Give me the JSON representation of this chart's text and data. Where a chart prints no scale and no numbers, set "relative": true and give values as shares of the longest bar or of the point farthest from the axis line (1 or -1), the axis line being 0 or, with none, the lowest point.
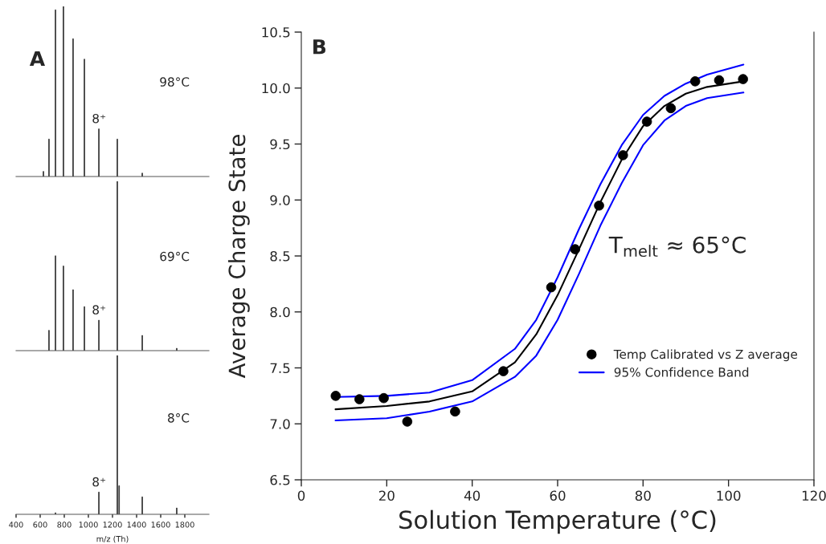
{
  "chart_data": [
    {
      "type": "bar",
      "title": "A",
      "relative": true,
      "color": "#333333",
      "xlim": [
        400,
        2000
      ],
      "tick_labels": false,
      "annotations": [
        "98°C",
        "8⁺"
      ],
      "x": [
        627,
        673,
        727,
        793,
        873,
        967,
        1087,
        1240,
        1447
      ],
      "values": [
        0.03,
        0.22,
        0.98,
        1,
        0.81,
        0.69,
        0.28,
        0.22,
        0.02
      ]
    },
    {
      "type": "bar",
      "relative": true,
      "color": "#333333",
      "xlim": [
        400,
        2000
      ],
      "tick_labels": false,
      "annotations": [
        "69°C",
        "8⁺"
      ],
      "x": [
        673,
        727,
        793,
        873,
        967,
        1087,
        1240,
        1447,
        1733
      ],
      "values": [
        0.12,
        0.56,
        0.5,
        0.36,
        0.26,
        0.18,
        1,
        0.09,
        0.014
      ]
    },
    {
      "type": "bar",
      "relative": true,
      "color": "#333333",
      "xlim": [
        400,
        2000
      ],
      "xticks": [
        400,
        600,
        800,
        1000,
        1200,
        1400,
        1600,
        1800
      ],
      "tick_labels": "x",
      "xlabel": "m/z (Th)",
      "annotations": [
        "8°C",
        "8⁺"
      ],
      "x": [
        727,
        1087,
        1240,
        1255,
        1447,
        1733
      ],
      "values": [
        0.01,
        0.14,
        1,
        0.18,
        0.11,
        0.04
      ]
    },
    {
      "type": "scatter",
      "title": "B",
      "xlabel": "Solution Temperature (°C)",
      "ylabel": "Average Charge State",
      "legend": "bottom right",
      "grid": false,
      "xlim": [
        0,
        120
      ],
      "xticks": [
        0,
        20,
        40,
        60,
        80,
        100,
        120
      ],
      "ylim": [
        6.5,
        10.5
      ],
      "yticks": [
        {
          "value": 6.5,
          "label": "6.5"
        },
        {
          "value": 7,
          "label": "7.0"
        },
        {
          "value": 7.5,
          "label": "7.5"
        },
        {
          "value": 8,
          "label": "8.0"
        },
        {
          "value": 8.5,
          "label": "8.5"
        },
        {
          "value": 9,
          "label": "9.0"
        },
        {
          "value": 9.5,
          "label": "9.5"
        },
        {
          "value": 10,
          "label": "10.0"
        },
        {
          "value": 10.5,
          "label": "10.5"
        }
      ],
      "annotations": [
        "T$_{melt}$ ≈ 65°C"
      ],
      "series": [
        {
          "type": "scatter",
          "name": "Temp Calibrated vs Z average",
          "color": "#000000",
          "marker": "circle",
          "x": [
            8.05,
            13.6,
            19.3,
            24.8,
            36.0,
            47.3,
            58.5,
            64.1,
            69.7,
            75.3,
            80.9,
            86.5,
            92.2,
            97.8,
            103.4
          ],
          "values": [
            7.25,
            7.22,
            7.23,
            7.02,
            7.11,
            7.47,
            8.22,
            8.56,
            8.95,
            9.4,
            9.7,
            9.82,
            10.06,
            10.07,
            10.08
          ]
        },
        {
          "type": "line",
          "color": "#000000",
          "x": [
            8,
            20,
            30,
            40,
            50,
            55,
            60,
            65,
            70,
            75,
            80,
            85,
            90,
            95,
            103.5
          ],
          "values": [
            7.13,
            7.16,
            7.2,
            7.29,
            7.55,
            7.8,
            8.15,
            8.56,
            8.98,
            9.36,
            9.66,
            9.84,
            9.95,
            10.01,
            10.06
          ]
        },
        {
          "type": "line",
          "name": "95% Confidence Band",
          "color": "#0000ff",
          "x": [
            8,
            20,
            30,
            40,
            50,
            55,
            60,
            65,
            70,
            75,
            80,
            85,
            90,
            95,
            103.5
          ],
          "values": [
            7.24,
            7.25,
            7.28,
            7.39,
            7.67,
            7.93,
            8.31,
            8.74,
            9.14,
            9.49,
            9.76,
            9.93,
            10.04,
            10.12,
            10.21
          ]
        },
        {
          "type": "line",
          "color": "#0000ff",
          "x": [
            8,
            20,
            30,
            40,
            50,
            55,
            60,
            65,
            70,
            75,
            80,
            85,
            90,
            95,
            103.5
          ],
          "values": [
            7.03,
            7.05,
            7.11,
            7.2,
            7.42,
            7.61,
            7.93,
            8.34,
            8.77,
            9.15,
            9.49,
            9.71,
            9.84,
            9.91,
            9.96
          ]
        }
      ]
    }
  ]
}
